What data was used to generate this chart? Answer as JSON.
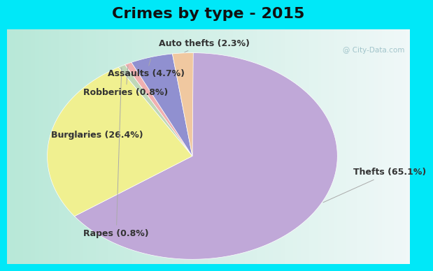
{
  "title": "Crimes by type - 2015",
  "slices": [
    {
      "label": "Thefts (65.1%)",
      "value": 65.1,
      "color": "#c0a8d8"
    },
    {
      "label": "Burglaries (26.4%)",
      "value": 26.4,
      "color": "#f0f090"
    },
    {
      "label": "Rapes (0.8%)",
      "value": 0.8,
      "color": "#c0d8b8"
    },
    {
      "label": "Robberies (0.8%)",
      "value": 0.8,
      "color": "#f0b0b0"
    },
    {
      "label": "Assaults (4.7%)",
      "value": 4.7,
      "color": "#9090d0"
    },
    {
      "label": "Auto thefts (2.3%)",
      "value": 2.3,
      "color": "#f0c8a0"
    }
  ],
  "bg_cyan": "#00e8f8",
  "title_fontsize": 16,
  "label_fontsize": 9,
  "watermark": "@ City-Data.com",
  "label_color": "#333333"
}
